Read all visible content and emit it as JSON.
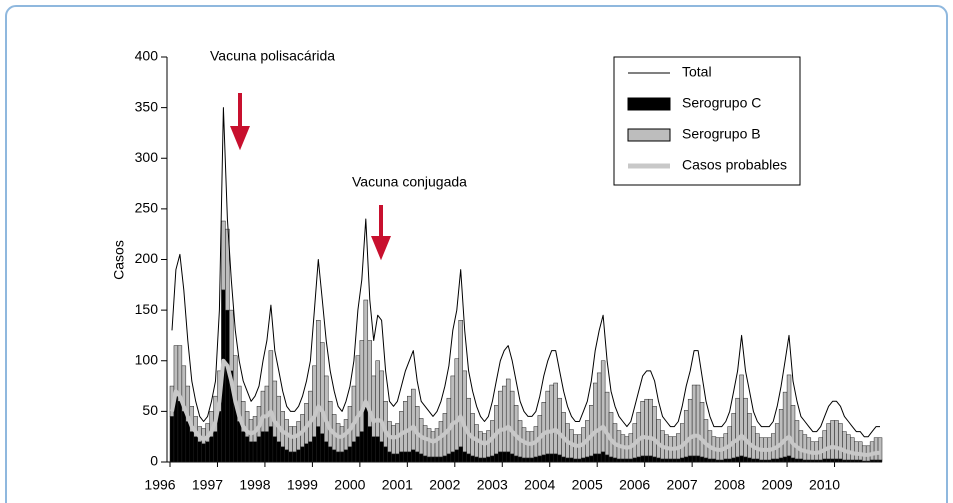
{
  "chart_data": {
    "type": "bar",
    "stacked": true,
    "ylabel": "Casos",
    "annotations": [
      "Vacuna polisacárida",
      "Vacuna conjugada"
    ],
    "legend": "top right",
    "ylim": [
      0,
      400
    ],
    "yticks": [
      0,
      50,
      100,
      150,
      200,
      250,
      300,
      350,
      400
    ],
    "categories": [
      "1996",
      null,
      null,
      null,
      null,
      null,
      null,
      null,
      null,
      null,
      null,
      null,
      "1997",
      null,
      null,
      null,
      null,
      null,
      null,
      null,
      null,
      null,
      null,
      null,
      "1998",
      null,
      null,
      null,
      null,
      null,
      null,
      null,
      null,
      null,
      null,
      null,
      "1999",
      null,
      null,
      null,
      null,
      null,
      null,
      null,
      null,
      null,
      null,
      null,
      "2000",
      null,
      null,
      null,
      null,
      null,
      null,
      null,
      null,
      null,
      null,
      null,
      "2001",
      null,
      null,
      null,
      null,
      null,
      null,
      null,
      null,
      null,
      null,
      null,
      "2002",
      null,
      null,
      null,
      null,
      null,
      null,
      null,
      null,
      null,
      null,
      null,
      "2003",
      null,
      null,
      null,
      null,
      null,
      null,
      null,
      null,
      null,
      null,
      null,
      "2004",
      null,
      null,
      null,
      null,
      null,
      null,
      null,
      null,
      null,
      null,
      null,
      "2005",
      null,
      null,
      null,
      null,
      null,
      null,
      null,
      null,
      null,
      null,
      null,
      "2006",
      null,
      null,
      null,
      null,
      null,
      null,
      null,
      null,
      null,
      null,
      null,
      "2007",
      null,
      null,
      null,
      null,
      null,
      null,
      null,
      null,
      null,
      null,
      null,
      "2008",
      null,
      null,
      null,
      null,
      null,
      null,
      null,
      null,
      null,
      null,
      null,
      "2009",
      null,
      null,
      null,
      null,
      null,
      null,
      null,
      null,
      null,
      null,
      null,
      "2010",
      null,
      null,
      null,
      null,
      null,
      null,
      null,
      null,
      null,
      null,
      null
    ],
    "series": [
      {
        "name": "Total",
        "type": "line",
        "color": "#000000",
        "values": [
          130,
          190,
          205,
          170,
          120,
          80,
          60,
          45,
          40,
          45,
          60,
          80,
          150,
          350,
          240,
          180,
          130,
          100,
          80,
          70,
          60,
          65,
          75,
          100,
          120,
          155,
          110,
          90,
          70,
          55,
          50,
          50,
          55,
          65,
          80,
          100,
          150,
          200,
          160,
          120,
          90,
          70,
          55,
          50,
          60,
          75,
          100,
          150,
          180,
          240,
          160,
          120,
          145,
          140,
          90,
          60,
          55,
          60,
          75,
          90,
          100,
          110,
          80,
          60,
          55,
          50,
          45,
          50,
          60,
          75,
          95,
          130,
          150,
          190,
          130,
          90,
          70,
          55,
          45,
          40,
          45,
          60,
          80,
          100,
          110,
          115,
          100,
          80,
          60,
          50,
          45,
          45,
          50,
          65,
          85,
          100,
          110,
          110,
          90,
          70,
          55,
          45,
          40,
          40,
          50,
          60,
          80,
          110,
          130,
          145,
          100,
          70,
          55,
          45,
          40,
          35,
          40,
          55,
          70,
          85,
          90,
          90,
          80,
          60,
          45,
          40,
          35,
          35,
          40,
          55,
          75,
          90,
          110,
          110,
          85,
          60,
          45,
          35,
          35,
          35,
          40,
          50,
          70,
          90,
          125,
          90,
          70,
          50,
          40,
          35,
          35,
          35,
          40,
          55,
          75,
          100,
          125,
          80,
          60,
          45,
          40,
          35,
          30,
          30,
          35,
          45,
          55,
          60,
          60,
          55,
          45,
          40,
          35,
          30,
          30,
          25,
          25,
          30,
          35,
          35
        ]
      },
      {
        "name": "Serogrupo C",
        "type": "bar",
        "color": "#000000",
        "values": [
          45,
          65,
          60,
          50,
          40,
          30,
          25,
          20,
          18,
          20,
          25,
          30,
          50,
          170,
          150,
          90,
          60,
          40,
          30,
          25,
          20,
          20,
          25,
          30,
          30,
          35,
          25,
          20,
          15,
          12,
          10,
          10,
          12,
          15,
          18,
          20,
          25,
          35,
          28,
          20,
          15,
          12,
          10,
          10,
          12,
          15,
          20,
          25,
          30,
          55,
          35,
          25,
          25,
          20,
          15,
          10,
          8,
          8,
          10,
          10,
          10,
          12,
          10,
          8,
          6,
          5,
          5,
          5,
          5,
          6,
          8,
          10,
          12,
          15,
          10,
          8,
          6,
          5,
          4,
          4,
          5,
          6,
          8,
          10,
          10,
          10,
          8,
          6,
          5,
          4,
          4,
          4,
          5,
          6,
          7,
          8,
          8,
          8,
          7,
          5,
          4,
          4,
          3,
          3,
          4,
          5,
          6,
          8,
          8,
          10,
          7,
          5,
          4,
          3,
          3,
          3,
          3,
          4,
          5,
          6,
          6,
          6,
          5,
          4,
          3,
          3,
          3,
          3,
          3,
          4,
          5,
          6,
          6,
          6,
          5,
          4,
          3,
          3,
          2,
          2,
          3,
          3,
          4,
          5,
          6,
          5,
          4,
          3,
          3,
          2,
          2,
          2,
          3,
          3,
          4,
          5,
          6,
          4,
          3,
          3,
          2,
          2,
          2,
          2,
          2,
          3,
          3,
          3,
          3,
          3,
          2,
          2,
          2,
          2,
          2,
          1,
          1,
          2,
          2,
          2
        ]
      },
      {
        "name": "Serogrupo B",
        "type": "bar",
        "color": "#bdbdbd",
        "values": [
          30,
          50,
          55,
          45,
          35,
          25,
          20,
          15,
          15,
          18,
          25,
          35,
          40,
          68,
          80,
          60,
          45,
          35,
          30,
          25,
          22,
          25,
          30,
          40,
          45,
          75,
          55,
          45,
          35,
          30,
          25,
          25,
          28,
          32,
          40,
          50,
          70,
          105,
          90,
          65,
          45,
          35,
          28,
          25,
          30,
          40,
          55,
          80,
          90,
          105,
          85,
          60,
          75,
          70,
          45,
          30,
          28,
          30,
          40,
          50,
          55,
          60,
          45,
          35,
          30,
          28,
          25,
          28,
          35,
          42,
          55,
          75,
          90,
          125,
          80,
          55,
          42,
          32,
          26,
          24,
          26,
          35,
          48,
          60,
          65,
          72,
          62,
          50,
          36,
          30,
          26,
          26,
          30,
          40,
          52,
          62,
          68,
          70,
          56,
          44,
          34,
          28,
          24,
          24,
          30,
          36,
          50,
          70,
          80,
          90,
          62,
          44,
          34,
          28,
          24,
          22,
          25,
          34,
          44,
          54,
          56,
          56,
          50,
          38,
          28,
          24,
          22,
          22,
          25,
          34,
          46,
          56,
          70,
          70,
          54,
          38,
          28,
          22,
          22,
          22,
          25,
          32,
          44,
          58,
          80,
          58,
          44,
          32,
          25,
          22,
          22,
          22,
          25,
          35,
          48,
          64,
          80,
          52,
          38,
          28,
          25,
          22,
          18,
          18,
          22,
          28,
          35,
          38,
          38,
          35,
          28,
          25,
          22,
          18,
          18,
          15,
          15,
          18,
          22,
          22
        ]
      },
      {
        "name": "Casos probables",
        "type": "line",
        "color": "#c8c8c8",
        "values": [
          50,
          70,
          65,
          55,
          45,
          35,
          30,
          25,
          22,
          25,
          30,
          40,
          60,
          100,
          95,
          80,
          60,
          45,
          35,
          30,
          28,
          30,
          35,
          45,
          45,
          50,
          40,
          35,
          30,
          28,
          25,
          25,
          27,
          30,
          35,
          40,
          45,
          55,
          50,
          40,
          32,
          28,
          25,
          25,
          28,
          32,
          38,
          45,
          50,
          60,
          50,
          40,
          42,
          40,
          30,
          25,
          24,
          25,
          28,
          30,
          32,
          35,
          28,
          25,
          23,
          22,
          20,
          22,
          25,
          28,
          32,
          38,
          40,
          45,
          35,
          28,
          24,
          22,
          20,
          18,
          20,
          24,
          28,
          32,
          32,
          35,
          30,
          26,
          22,
          20,
          18,
          18,
          20,
          24,
          28,
          30,
          30,
          32,
          28,
          24,
          20,
          18,
          16,
          16,
          18,
          22,
          26,
          30,
          32,
          35,
          28,
          22,
          18,
          16,
          15,
          14,
          15,
          18,
          22,
          25,
          24,
          24,
          22,
          18,
          15,
          14,
          13,
          13,
          14,
          16,
          20,
          24,
          26,
          26,
          22,
          18,
          15,
          13,
          12,
          12,
          14,
          16,
          20,
          22,
          26,
          22,
          18,
          15,
          13,
          12,
          12,
          12,
          13,
          15,
          18,
          22,
          25,
          18,
          15,
          12,
          11,
          10,
          9,
          9,
          10,
          12,
          14,
          15,
          14,
          13,
          11,
          10,
          9,
          8,
          8,
          7,
          7,
          8,
          9,
          9
        ]
      }
    ]
  }
}
